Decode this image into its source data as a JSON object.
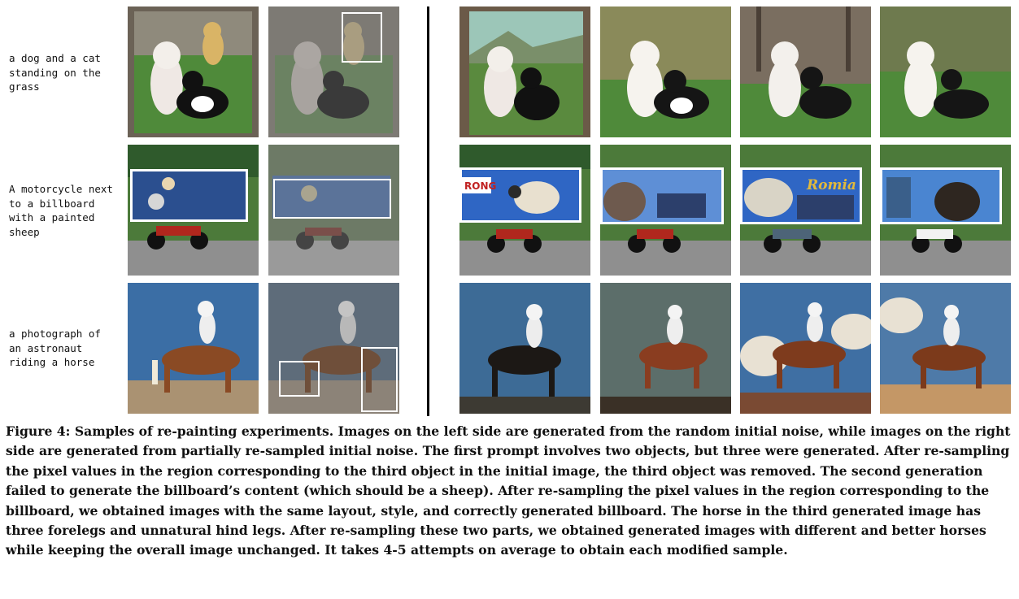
{
  "prompts": [
    "a dog and a cat\nstanding on the\ngrass",
    "A motorcycle next\nto a billboard\nwith a painted\nsheep",
    "a photograph of\nan astronaut\nriding a horse"
  ],
  "rows": [
    {
      "left_images": [
        "dog-cat-dog-original",
        "dog-cat-dog-masked"
      ],
      "right_images": [
        "dog-cat-resample-1",
        "dog-cat-resample-2",
        "dog-cat-resample-3",
        "dog-cat-resample-4"
      ]
    },
    {
      "left_images": [
        "motorcycle-billboard-original",
        "motorcycle-billboard-masked"
      ],
      "right_images": [
        "motorcycle-sheep-resample-1",
        "motorcycle-sheep-resample-2",
        "motorcycle-sheep-resample-3",
        "motorcycle-sheep-resample-4"
      ]
    },
    {
      "left_images": [
        "astronaut-horse-original",
        "astronaut-horse-masked"
      ],
      "right_images": [
        "astronaut-horse-resample-1",
        "astronaut-horse-resample-2",
        "astronaut-horse-resample-3",
        "astronaut-horse-resample-4"
      ]
    }
  ],
  "billboard_text": [
    "RONG",
    "Romia"
  ],
  "caption": "Figure 4: Samples of re-painting experiments. Images on the left side are generated from the random initial noise, while images on the right side are generated from partially re-sampled initial noise. The first prompt involves two objects, but three were generated. After re-sampling the pixel values in the region corresponding to the third object in the initial image, the third object was removed. The second generation failed to generate the billboard’s content (which should be a sheep). After re-sampling the pixel values in the region corresponding to the billboard, we obtained images with the same layout, style, and correctly generated billboard. The horse in the third generated image has three forelegs and unnatural hind legs. After re-sampling these two parts, we obtained generated images with different and better horses while keeping the overall image unchanged. It takes 4-5 attempts on average to obtain each modified sample.",
  "colors": {
    "grass": "#4f8a3a",
    "sky": "#3b6ea5",
    "highlight_box": "#ffffff",
    "divider": "#000000"
  }
}
